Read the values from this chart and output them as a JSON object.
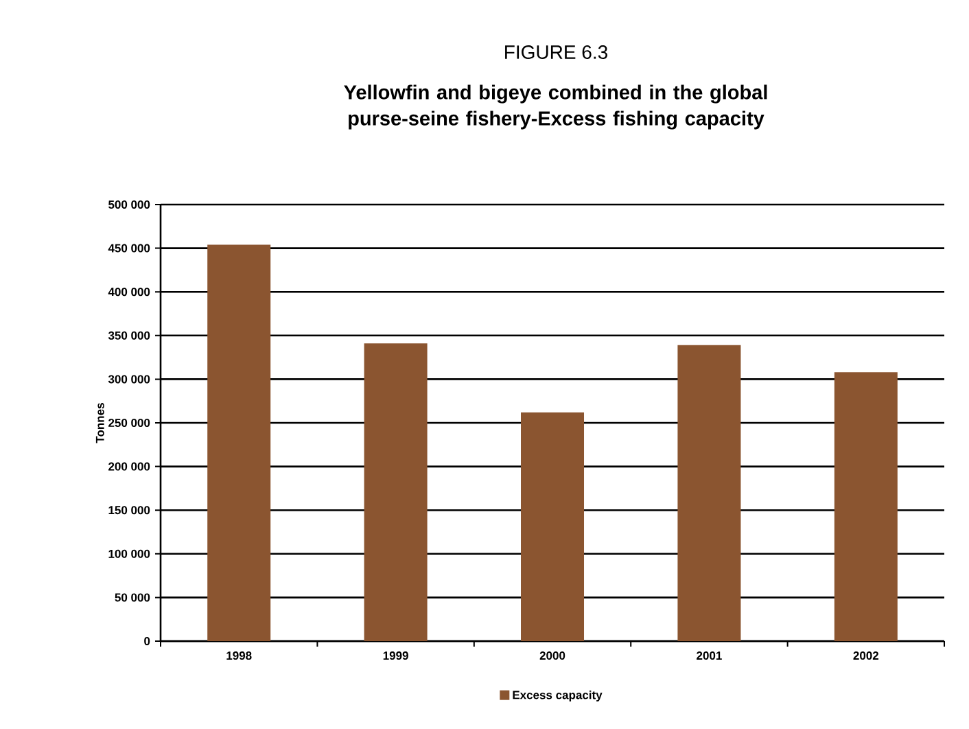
{
  "chart_data": {
    "type": "bar",
    "title": "FIGURE 6.3",
    "subtitle": "Yellowfin and bigeye combined in the global purse-seine fishery-Excess fishing capacity",
    "ylabel": "Tonnes",
    "categories": [
      "1998",
      "1999",
      "2000",
      "2001",
      "2002"
    ],
    "series": [
      {
        "name": "Excess capacity",
        "color": "#8b5530",
        "values": [
          454000,
          341000,
          262000,
          339000,
          308000
        ]
      }
    ],
    "ylim": [
      0,
      500000
    ],
    "yticks": [
      {
        "value": 0,
        "label": "0"
      },
      {
        "value": 50000,
        "label": "50 000"
      },
      {
        "value": 100000,
        "label": "100 000"
      },
      {
        "value": 150000,
        "label": "150 000"
      },
      {
        "value": 200000,
        "label": "200 000"
      },
      {
        "value": 250000,
        "label": "250 000"
      },
      {
        "value": 300000,
        "label": "300 000"
      },
      {
        "value": 350000,
        "label": "350 000"
      },
      {
        "value": 400000,
        "label": "400 000"
      },
      {
        "value": 450000,
        "label": "450 000"
      },
      {
        "value": 500000,
        "label": "500 000"
      }
    ],
    "grid": "y",
    "legend": "bottom"
  }
}
